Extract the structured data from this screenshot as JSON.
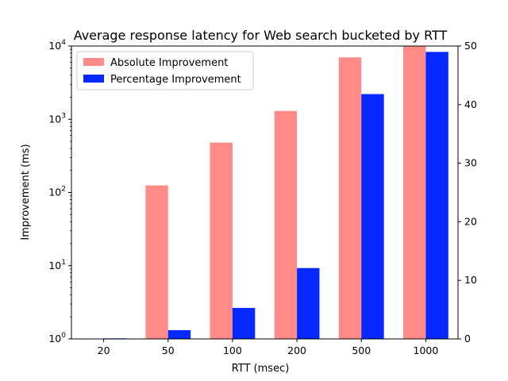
{
  "chart_data": {
    "type": "bar",
    "title": "Average response latency for Web search bucketed by RTT",
    "xlabel": "RTT (msec)",
    "ylabel": "Improvement (ms)",
    "y_scale": "log",
    "ylim": [
      1,
      10000
    ],
    "y_ticks": [
      {
        "value": 1,
        "base": "10",
        "exp": "0"
      },
      {
        "value": 10,
        "base": "10",
        "exp": "1"
      },
      {
        "value": 100,
        "base": "10",
        "exp": "2"
      },
      {
        "value": 1000,
        "base": "10",
        "exp": "3"
      },
      {
        "value": 10000,
        "base": "10",
        "exp": "4"
      }
    ],
    "y2lim": [
      0,
      50
    ],
    "y2_ticks": [
      "0",
      "10",
      "20",
      "30",
      "40",
      "50"
    ],
    "categories": [
      "20",
      "50",
      "100",
      "200",
      "500",
      "1000"
    ],
    "series": [
      {
        "name": "Absolute Improvement",
        "axis": "left",
        "color": "#ff8a87",
        "values": [
          1,
          125,
          480,
          1300,
          7000,
          10000
        ]
      },
      {
        "name": "Percentage Improvement",
        "axis": "right",
        "color": "#0628ff",
        "values": [
          0.1,
          1.5,
          5.3,
          12.1,
          41.8,
          49.0
        ]
      }
    ],
    "legend_position": "top-left",
    "grid": false
  }
}
